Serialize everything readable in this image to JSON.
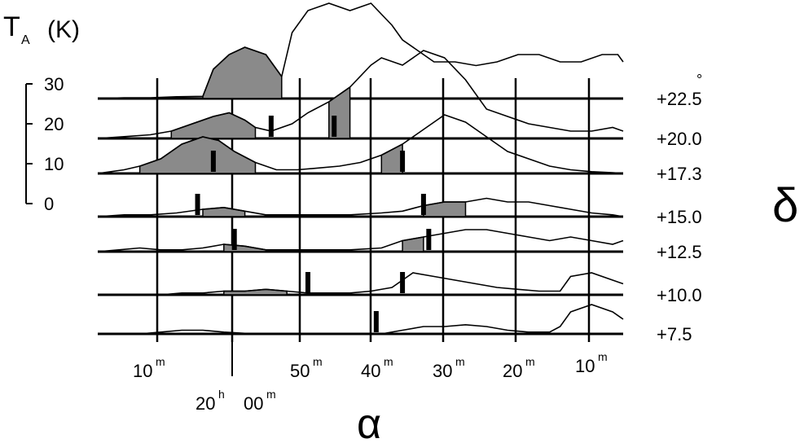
{
  "chart_data": {
    "type": "line",
    "ylabel_html": {
      "main": "T",
      "sub": "A",
      "unit": "(K)"
    },
    "ylabel": "TA (K)",
    "xlabel": "α",
    "row_axis_label": "δ",
    "row_unit": "°",
    "scale_bar": {
      "ticks": [
        0,
        10,
        20,
        30
      ],
      "labels": [
        "0",
        "10",
        "20",
        "30"
      ]
    },
    "x_ticks": [
      {
        "label": "10",
        "sup": "m"
      },
      {
        "label": "20",
        "sup": "h",
        "label2": "00",
        "sup2": "m"
      },
      {
        "label": "50",
        "sup": "m"
      },
      {
        "label": "40",
        "sup": "m"
      },
      {
        "label": "30",
        "sup": "m"
      },
      {
        "label": "20",
        "sup": "m"
      },
      {
        "label": "10",
        "sup": "m"
      }
    ],
    "rows": [
      {
        "dec": "+22.5",
        "profile": [
          [
            0,
            0
          ],
          [
            0.05,
            0.2
          ],
          [
            0.1,
            0.2
          ],
          [
            0.15,
            0.5
          ],
          [
            0.2,
            0.6
          ],
          [
            0.22,
            8
          ],
          [
            0.25,
            12
          ],
          [
            0.28,
            14
          ],
          [
            0.32,
            12
          ],
          [
            0.35,
            6
          ],
          [
            0.37,
            18
          ],
          [
            0.4,
            24
          ],
          [
            0.44,
            26
          ],
          [
            0.48,
            24
          ],
          [
            0.52,
            26
          ],
          [
            0.56,
            20
          ],
          [
            0.58,
            16
          ],
          [
            0.62,
            12
          ],
          [
            0.64,
            10
          ],
          [
            0.68,
            10
          ],
          [
            0.72,
            9
          ],
          [
            0.76,
            10
          ],
          [
            0.8,
            12
          ],
          [
            0.84,
            12
          ],
          [
            0.88,
            10
          ],
          [
            0.92,
            10
          ],
          [
            0.96,
            12
          ],
          [
            0.99,
            12
          ],
          [
            1.0,
            10
          ]
        ],
        "shade": [
          0.2,
          0.36
        ],
        "marker": null
      },
      {
        "dec": "+20.0",
        "profile": [
          [
            0,
            0
          ],
          [
            0.05,
            0.5
          ],
          [
            0.1,
            1
          ],
          [
            0.14,
            2
          ],
          [
            0.18,
            4
          ],
          [
            0.22,
            6
          ],
          [
            0.25,
            7
          ],
          [
            0.28,
            5
          ],
          [
            0.3,
            3
          ],
          [
            0.33,
            2
          ],
          [
            0.37,
            4
          ],
          [
            0.4,
            7
          ],
          [
            0.44,
            10
          ],
          [
            0.48,
            14
          ],
          [
            0.52,
            20
          ],
          [
            0.54,
            22
          ],
          [
            0.58,
            20
          ],
          [
            0.62,
            24
          ],
          [
            0.66,
            22
          ],
          [
            0.7,
            16
          ],
          [
            0.74,
            8
          ],
          [
            0.78,
            6
          ],
          [
            0.82,
            4
          ],
          [
            0.86,
            3
          ],
          [
            0.9,
            2
          ],
          [
            0.94,
            2
          ],
          [
            0.98,
            3
          ],
          [
            1.0,
            2
          ]
        ],
        "shade": [
          0.14,
          0.3
        ],
        "shade2": [
          0.42,
          0.48
        ],
        "marker": [
          0.33,
          0.45
        ]
      },
      {
        "dec": "+17.3",
        "profile": [
          [
            0,
            0
          ],
          [
            0.05,
            1
          ],
          [
            0.08,
            2
          ],
          [
            0.12,
            4
          ],
          [
            0.16,
            8
          ],
          [
            0.2,
            10
          ],
          [
            0.23,
            9
          ],
          [
            0.26,
            6
          ],
          [
            0.3,
            3
          ],
          [
            0.34,
            1
          ],
          [
            0.38,
            1
          ],
          [
            0.42,
            1.5
          ],
          [
            0.46,
            2
          ],
          [
            0.5,
            3
          ],
          [
            0.54,
            5
          ],
          [
            0.58,
            8
          ],
          [
            0.62,
            12
          ],
          [
            0.66,
            16
          ],
          [
            0.7,
            14
          ],
          [
            0.74,
            10
          ],
          [
            0.78,
            6
          ],
          [
            0.82,
            4
          ],
          [
            0.86,
            2
          ],
          [
            0.9,
            1
          ],
          [
            0.94,
            0.5
          ],
          [
            0.98,
            0.2
          ],
          [
            1.0,
            0
          ]
        ],
        "shade": [
          0.08,
          0.3
        ],
        "shade2": [
          0.52,
          0.58
        ],
        "marker": [
          0.22,
          0.58
        ]
      },
      {
        "dec": "+15.0",
        "profile": [
          [
            0,
            0
          ],
          [
            0.05,
            0.5
          ],
          [
            0.1,
            0.5
          ],
          [
            0.15,
            1
          ],
          [
            0.2,
            2
          ],
          [
            0.24,
            2.5
          ],
          [
            0.28,
            1.5
          ],
          [
            0.32,
            0.5
          ],
          [
            0.4,
            0.5
          ],
          [
            0.48,
            0.5
          ],
          [
            0.54,
            1
          ],
          [
            0.58,
            1.5
          ],
          [
            0.62,
            3
          ],
          [
            0.66,
            4
          ],
          [
            0.7,
            4
          ],
          [
            0.74,
            5
          ],
          [
            0.78,
            4
          ],
          [
            0.82,
            4
          ],
          [
            0.86,
            3
          ],
          [
            0.9,
            2
          ],
          [
            0.94,
            1
          ],
          [
            0.98,
            0.5
          ],
          [
            1.0,
            0
          ]
        ],
        "shade": [
          0.2,
          0.28
        ],
        "shade2": [
          0.62,
          0.7
        ],
        "marker": [
          0.19,
          0.62
        ]
      },
      {
        "dec": "+12.5",
        "profile": [
          [
            0,
            0
          ],
          [
            0.04,
            0.5
          ],
          [
            0.08,
            1
          ],
          [
            0.12,
            0.5
          ],
          [
            0.16,
            0.5
          ],
          [
            0.2,
            1
          ],
          [
            0.24,
            2
          ],
          [
            0.28,
            1.5
          ],
          [
            0.32,
            0.5
          ],
          [
            0.4,
            0.5
          ],
          [
            0.48,
            0.5
          ],
          [
            0.54,
            1
          ],
          [
            0.58,
            3
          ],
          [
            0.62,
            4
          ],
          [
            0.66,
            5
          ],
          [
            0.7,
            6
          ],
          [
            0.74,
            6
          ],
          [
            0.78,
            5
          ],
          [
            0.82,
            4
          ],
          [
            0.86,
            3
          ],
          [
            0.9,
            4
          ],
          [
            0.94,
            3
          ],
          [
            0.98,
            2
          ],
          [
            1.0,
            3
          ]
        ],
        "shade": [
          0.22,
          0.32
        ],
        "shade2": [
          0.58,
          0.64
        ],
        "marker": [
          0.26,
          0.63
        ]
      },
      {
        "dec": "+10.0",
        "profile": [
          [
            0,
            0
          ],
          [
            0.04,
            0
          ],
          [
            0.08,
            0
          ],
          [
            0.12,
            0
          ],
          [
            0.16,
            0.5
          ],
          [
            0.2,
            0.5
          ],
          [
            0.24,
            1
          ],
          [
            0.28,
            1
          ],
          [
            0.32,
            1.5
          ],
          [
            0.36,
            1
          ],
          [
            0.4,
            0.5
          ],
          [
            0.44,
            0.5
          ],
          [
            0.48,
            0.5
          ],
          [
            0.52,
            1
          ],
          [
            0.56,
            2
          ],
          [
            0.6,
            6
          ],
          [
            0.64,
            5
          ],
          [
            0.68,
            4
          ],
          [
            0.72,
            3
          ],
          [
            0.76,
            2
          ],
          [
            0.8,
            1.5
          ],
          [
            0.84,
            1
          ],
          [
            0.88,
            1
          ],
          [
            0.9,
            5
          ],
          [
            0.94,
            6
          ],
          [
            0.98,
            4
          ],
          [
            1.0,
            3
          ]
        ],
        "shade": [
          0.24,
          0.38
        ],
        "marker": [
          0.4,
          0.58
        ]
      },
      {
        "dec": "+7.5",
        "profile": [
          [
            0,
            0
          ],
          [
            0.04,
            0
          ],
          [
            0.08,
            0
          ],
          [
            0.12,
            0.5
          ],
          [
            0.16,
            1
          ],
          [
            0.2,
            1
          ],
          [
            0.24,
            0.5
          ],
          [
            0.3,
            0
          ],
          [
            0.4,
            0
          ],
          [
            0.48,
            0
          ],
          [
            0.54,
            0
          ],
          [
            0.58,
            1
          ],
          [
            0.62,
            2
          ],
          [
            0.66,
            2
          ],
          [
            0.7,
            2.5
          ],
          [
            0.74,
            2
          ],
          [
            0.78,
            1
          ],
          [
            0.82,
            0.5
          ],
          [
            0.86,
            0.5
          ],
          [
            0.88,
            2
          ],
          [
            0.9,
            6
          ],
          [
            0.94,
            8
          ],
          [
            0.98,
            6
          ],
          [
            1.0,
            4
          ]
        ],
        "shade": null,
        "marker": [
          0.53
        ]
      }
    ]
  }
}
